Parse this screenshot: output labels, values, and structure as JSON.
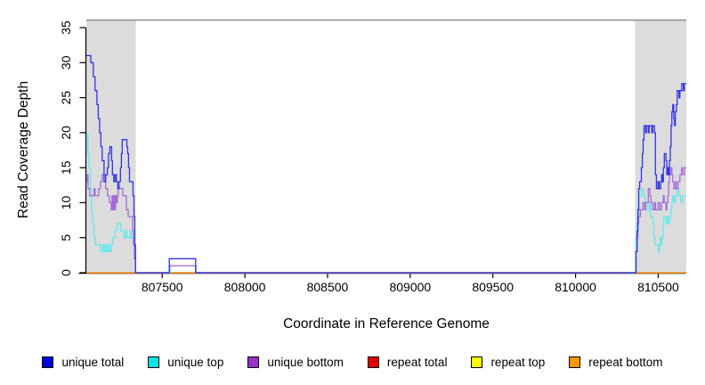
{
  "chart_data": {
    "type": "line",
    "step": true,
    "title": "",
    "xlabel": "Coordinate in Reference Genome",
    "ylabel": "Read Coverage Depth",
    "xlim": [
      807041,
      810670
    ],
    "ylim": [
      0,
      35
    ],
    "x_ticks": [
      "807500",
      "808000",
      "808500",
      "809000",
      "809500",
      "810000",
      "810500"
    ],
    "x_tick_values": [
      807500,
      808000,
      808500,
      809000,
      809500,
      810000,
      810500
    ],
    "y_ticks": [
      "0",
      "5",
      "10",
      "15",
      "20",
      "25",
      "30",
      "35"
    ],
    "y_tick_values": [
      0,
      5,
      10,
      15,
      20,
      25,
      30,
      35
    ],
    "grid": false,
    "legend_position": "bottom",
    "shade_color": "#DCDCDC",
    "top_border_color": "#8C8C8C",
    "shaded_regions": [
      [
        807041,
        807340
      ],
      [
        810360,
        810670
      ]
    ],
    "series": [
      {
        "name": "repeat total",
        "color": "#DD0000",
        "points": [
          [
            807041,
            0
          ]
        ]
      },
      {
        "name": "repeat top",
        "color": "#FFFF00",
        "points": [
          [
            807041,
            0
          ]
        ]
      },
      {
        "name": "repeat bottom",
        "color": "#FF9C20",
        "points": [
          [
            807041,
            0
          ]
        ]
      },
      {
        "name": "unique top",
        "color": "#63E9EC",
        "points": [
          [
            807041,
            20
          ],
          [
            807050,
            17
          ],
          [
            807056,
            15
          ],
          [
            807066,
            12
          ],
          [
            807072,
            9
          ],
          [
            807078,
            7
          ],
          [
            807088,
            5
          ],
          [
            807094,
            4
          ],
          [
            807121,
            4
          ],
          [
            807126,
            3
          ],
          [
            807142,
            4
          ],
          [
            807148,
            3
          ],
          [
            807158,
            4
          ],
          [
            807164,
            3
          ],
          [
            807175,
            4
          ],
          [
            807180,
            3
          ],
          [
            807191,
            4
          ],
          [
            807199,
            5
          ],
          [
            807210,
            5
          ],
          [
            807215,
            6
          ],
          [
            807226,
            7
          ],
          [
            807242,
            7
          ],
          [
            807247,
            6
          ],
          [
            807263,
            6
          ],
          [
            807269,
            5
          ],
          [
            807280,
            6
          ],
          [
            807285,
            5
          ],
          [
            807302,
            5
          ],
          [
            807307,
            6
          ],
          [
            807313,
            5
          ],
          [
            807329,
            5
          ],
          [
            807334,
            3
          ],
          [
            807338,
            0
          ],
          [
            807548,
            1
          ],
          [
            807706,
            0
          ],
          [
            810363,
            5
          ],
          [
            810369,
            7
          ],
          [
            810374,
            8
          ],
          [
            810384,
            11
          ],
          [
            810395,
            11
          ],
          [
            810400,
            12
          ],
          [
            810411,
            11
          ],
          [
            810421,
            10
          ],
          [
            810432,
            10
          ],
          [
            810437,
            9
          ],
          [
            810448,
            10
          ],
          [
            810453,
            8
          ],
          [
            810464,
            8
          ],
          [
            810469,
            7
          ],
          [
            810475,
            5
          ],
          [
            810480,
            4
          ],
          [
            810491,
            4
          ],
          [
            810501,
            3
          ],
          [
            810507,
            4
          ],
          [
            810512,
            5
          ],
          [
            810518,
            4
          ],
          [
            810523,
            5
          ],
          [
            810529,
            7
          ],
          [
            810534,
            8
          ],
          [
            810550,
            7
          ],
          [
            810555,
            8
          ],
          [
            810561,
            7
          ],
          [
            810571,
            8
          ],
          [
            810577,
            9
          ],
          [
            810582,
            10
          ],
          [
            810588,
            11
          ],
          [
            810598,
            10
          ],
          [
            810604,
            11
          ],
          [
            810614,
            12
          ],
          [
            810625,
            11
          ],
          [
            810636,
            10
          ],
          [
            810647,
            11
          ]
        ]
      },
      {
        "name": "unique bottom",
        "color": "#A66BD8",
        "points": [
          [
            807041,
            13
          ],
          [
            807046,
            14
          ],
          [
            807051,
            12
          ],
          [
            807061,
            11
          ],
          [
            807083,
            11
          ],
          [
            807088,
            12
          ],
          [
            807094,
            11
          ],
          [
            807110,
            11
          ],
          [
            807116,
            12
          ],
          [
            807126,
            13
          ],
          [
            807137,
            14
          ],
          [
            807153,
            14
          ],
          [
            807158,
            12
          ],
          [
            807169,
            11
          ],
          [
            807180,
            10
          ],
          [
            807191,
            9
          ],
          [
            807196,
            11
          ],
          [
            807202,
            9
          ],
          [
            807207,
            11
          ],
          [
            807212,
            9
          ],
          [
            807218,
            11
          ],
          [
            807223,
            10
          ],
          [
            807229,
            11
          ],
          [
            807234,
            12
          ],
          [
            807256,
            12
          ],
          [
            807261,
            11
          ],
          [
            807277,
            11
          ],
          [
            807283,
            9
          ],
          [
            807294,
            8
          ],
          [
            807315,
            8
          ],
          [
            807321,
            6
          ],
          [
            807326,
            4
          ],
          [
            807331,
            2
          ],
          [
            807339,
            0
          ],
          [
            807543,
            1
          ],
          [
            807702,
            0
          ],
          [
            810366,
            3
          ],
          [
            810372,
            5
          ],
          [
            810377,
            7
          ],
          [
            810382,
            8
          ],
          [
            810392,
            9
          ],
          [
            810403,
            9
          ],
          [
            810408,
            10
          ],
          [
            810418,
            9
          ],
          [
            810424,
            10
          ],
          [
            810440,
            12
          ],
          [
            810450,
            11
          ],
          [
            810456,
            10
          ],
          [
            810466,
            9
          ],
          [
            810477,
            10
          ],
          [
            810483,
            9
          ],
          [
            810493,
            9
          ],
          [
            810499,
            10
          ],
          [
            810509,
            9
          ],
          [
            810520,
            10
          ],
          [
            810531,
            11
          ],
          [
            810536,
            10
          ],
          [
            810547,
            9
          ],
          [
            810552,
            10
          ],
          [
            810558,
            11
          ],
          [
            810563,
            13
          ],
          [
            810568,
            14
          ],
          [
            810578,
            15
          ],
          [
            810583,
            14
          ],
          [
            810588,
            13
          ],
          [
            810594,
            12
          ],
          [
            810604,
            13
          ],
          [
            810609,
            12
          ],
          [
            810620,
            13
          ],
          [
            810631,
            14
          ],
          [
            810642,
            15
          ],
          [
            810647,
            14
          ],
          [
            810658,
            15
          ]
        ]
      },
      {
        "name": "unique total",
        "color": "#3232E8",
        "points": [
          [
            807041,
            31
          ],
          [
            807068,
            30
          ],
          [
            807083,
            28
          ],
          [
            807094,
            26
          ],
          [
            807105,
            24
          ],
          [
            807113,
            22
          ],
          [
            807121,
            20
          ],
          [
            807129,
            18
          ],
          [
            807137,
            16
          ],
          [
            807148,
            13
          ],
          [
            807158,
            14
          ],
          [
            807168,
            15
          ],
          [
            807175,
            17
          ],
          [
            807183,
            18
          ],
          [
            807194,
            16
          ],
          [
            807199,
            14
          ],
          [
            807207,
            13
          ],
          [
            807215,
            14
          ],
          [
            807223,
            13
          ],
          [
            807231,
            12
          ],
          [
            807239,
            13
          ],
          [
            807247,
            15
          ],
          [
            807253,
            17
          ],
          [
            807258,
            19
          ],
          [
            807280,
            19
          ],
          [
            807286,
            18
          ],
          [
            807291,
            17
          ],
          [
            807296,
            15
          ],
          [
            807302,
            13
          ],
          [
            807318,
            13
          ],
          [
            807323,
            11
          ],
          [
            807329,
            8
          ],
          [
            807334,
            4
          ],
          [
            807338,
            0
          ],
          [
            807543,
            2
          ],
          [
            807702,
            0
          ],
          [
            810366,
            3
          ],
          [
            810372,
            6
          ],
          [
            810377,
            9
          ],
          [
            810382,
            12
          ],
          [
            810388,
            13
          ],
          [
            810398,
            15
          ],
          [
            810404,
            17
          ],
          [
            810409,
            19
          ],
          [
            810414,
            21
          ],
          [
            810424,
            20
          ],
          [
            810429,
            21
          ],
          [
            810440,
            20
          ],
          [
            810445,
            21
          ],
          [
            810461,
            20
          ],
          [
            810466,
            21
          ],
          [
            810477,
            20
          ],
          [
            810483,
            14
          ],
          [
            810489,
            12
          ],
          [
            810499,
            13
          ],
          [
            810505,
            12
          ],
          [
            810515,
            13
          ],
          [
            810521,
            14
          ],
          [
            810526,
            13
          ],
          [
            810531,
            15
          ],
          [
            810537,
            17
          ],
          [
            810547,
            16
          ],
          [
            810552,
            14
          ],
          [
            810558,
            15
          ],
          [
            810563,
            14
          ],
          [
            810568,
            16
          ],
          [
            810573,
            18
          ],
          [
            810578,
            21
          ],
          [
            810583,
            23
          ],
          [
            810588,
            24
          ],
          [
            810594,
            22
          ],
          [
            810599,
            21
          ],
          [
            810604,
            23
          ],
          [
            810610,
            24
          ],
          [
            810615,
            26
          ],
          [
            810626,
            25
          ],
          [
            810631,
            26
          ],
          [
            810642,
            27
          ],
          [
            810652,
            26
          ],
          [
            810658,
            27
          ]
        ]
      }
    ],
    "legend": [
      {
        "label": "unique total",
        "fill": "#0000E1"
      },
      {
        "label": "unique top",
        "fill": "#00E5E5"
      },
      {
        "label": "unique bottom",
        "fill": "#9932CC"
      },
      {
        "label": "repeat total",
        "fill": "#E10000"
      },
      {
        "label": "repeat top",
        "fill": "#FFFF00"
      },
      {
        "label": "repeat bottom",
        "fill": "#FF9800"
      }
    ]
  }
}
